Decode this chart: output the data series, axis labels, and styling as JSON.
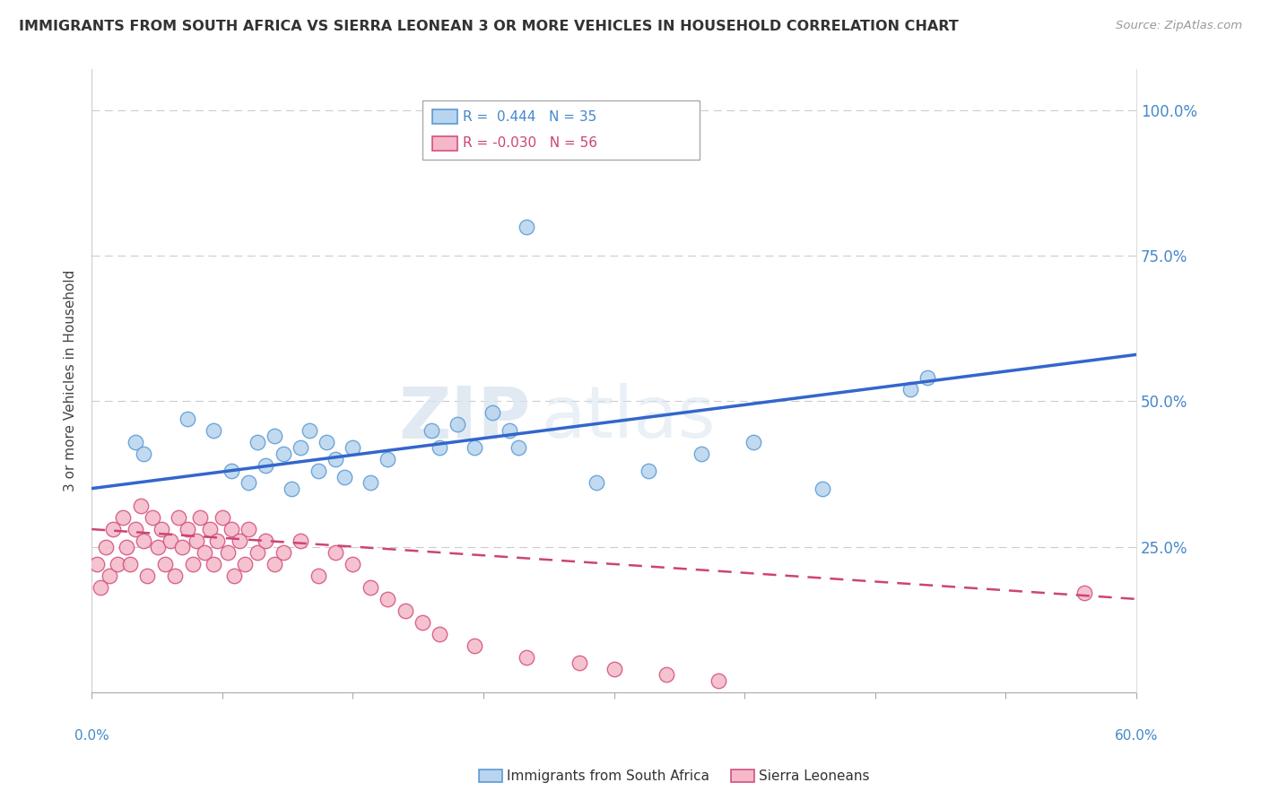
{
  "title": "IMMIGRANTS FROM SOUTH AFRICA VS SIERRA LEONEAN 3 OR MORE VEHICLES IN HOUSEHOLD CORRELATION CHART",
  "source": "Source: ZipAtlas.com",
  "ylabel": "3 or more Vehicles in Household",
  "xlim": [
    0.0,
    60.0
  ],
  "ylim": [
    0.0,
    107.0
  ],
  "series": [
    {
      "label": "Immigrants from South Africa",
      "R": 0.444,
      "N": 35,
      "color": "#b8d4ee",
      "edge_color": "#5b9bd5",
      "trend_color": "#3366cc",
      "trend_style": "solid",
      "legend_text": "R =  0.444   N = 35"
    },
    {
      "label": "Sierra Leoneans",
      "R": -0.03,
      "N": 56,
      "color": "#f4b8c8",
      "edge_color": "#d45080",
      "trend_color": "#cc4477",
      "trend_style": "dashed",
      "legend_text": "R = -0.030   N = 56"
    }
  ],
  "blue_x": [
    2.5,
    3.0,
    5.5,
    7.0,
    8.0,
    9.0,
    9.5,
    10.0,
    10.5,
    11.0,
    11.5,
    12.0,
    12.5,
    13.0,
    13.5,
    14.0,
    14.5,
    15.0,
    16.0,
    17.0,
    19.5,
    20.0,
    21.0,
    22.0,
    23.0,
    24.0,
    24.5,
    25.0,
    29.0,
    32.0,
    35.0,
    38.0,
    42.0,
    47.0,
    48.0
  ],
  "blue_y": [
    43.0,
    41.0,
    47.0,
    45.0,
    38.0,
    36.0,
    43.0,
    39.0,
    44.0,
    41.0,
    35.0,
    42.0,
    45.0,
    38.0,
    43.0,
    40.0,
    37.0,
    42.0,
    36.0,
    40.0,
    45.0,
    42.0,
    46.0,
    42.0,
    48.0,
    45.0,
    42.0,
    80.0,
    36.0,
    38.0,
    41.0,
    43.0,
    35.0,
    52.0,
    54.0
  ],
  "pink_x": [
    0.3,
    0.5,
    0.8,
    1.0,
    1.2,
    1.5,
    1.8,
    2.0,
    2.2,
    2.5,
    2.8,
    3.0,
    3.2,
    3.5,
    3.8,
    4.0,
    4.2,
    4.5,
    4.8,
    5.0,
    5.2,
    5.5,
    5.8,
    6.0,
    6.2,
    6.5,
    6.8,
    7.0,
    7.2,
    7.5,
    7.8,
    8.0,
    8.2,
    8.5,
    8.8,
    9.0,
    9.5,
    10.0,
    10.5,
    11.0,
    12.0,
    13.0,
    14.0,
    15.0,
    16.0,
    17.0,
    18.0,
    19.0,
    20.0,
    22.0,
    25.0,
    28.0,
    30.0,
    33.0,
    36.0,
    57.0
  ],
  "pink_y": [
    22.0,
    18.0,
    25.0,
    20.0,
    28.0,
    22.0,
    30.0,
    25.0,
    22.0,
    28.0,
    32.0,
    26.0,
    20.0,
    30.0,
    25.0,
    28.0,
    22.0,
    26.0,
    20.0,
    30.0,
    25.0,
    28.0,
    22.0,
    26.0,
    30.0,
    24.0,
    28.0,
    22.0,
    26.0,
    30.0,
    24.0,
    28.0,
    20.0,
    26.0,
    22.0,
    28.0,
    24.0,
    26.0,
    22.0,
    24.0,
    26.0,
    20.0,
    24.0,
    22.0,
    18.0,
    16.0,
    14.0,
    12.0,
    10.0,
    8.0,
    6.0,
    5.0,
    4.0,
    3.0,
    2.0,
    17.0
  ],
  "blue_trend": [
    35.0,
    58.0
  ],
  "pink_trend": [
    28.0,
    16.0
  ],
  "watermark_zip": "ZIP",
  "watermark_atlas": "atlas",
  "background_color": "#ffffff",
  "grid_color": "#cccccc",
  "right_tick_color": "#4488cc"
}
